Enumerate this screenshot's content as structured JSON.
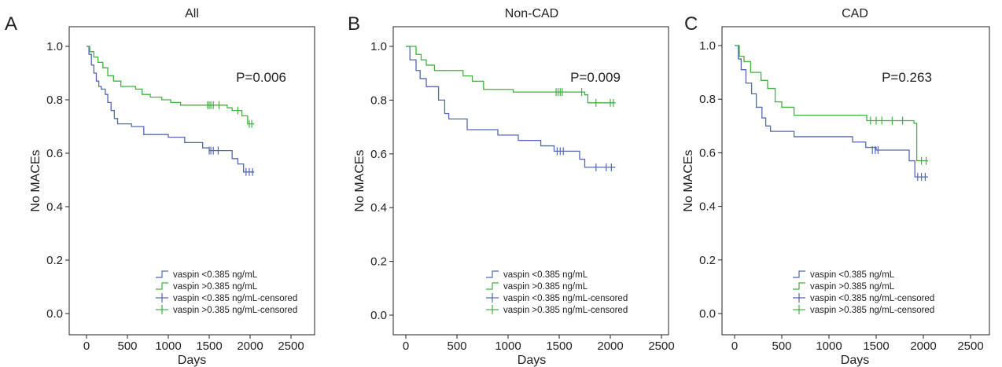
{
  "colors": {
    "low": "#5468b4",
    "high": "#3fb23f",
    "axis": "#222222"
  },
  "legend": [
    "vaspin <0.385 ng/mL",
    "vaspin >0.385 ng/mL",
    "vaspin <0.385 ng/mL-censored",
    "vaspin >0.385 ng/mL-censored"
  ],
  "chart_data": [
    {
      "type": "line",
      "panel": "A",
      "title": "All",
      "xlabel": "Days",
      "ylabel": "No MACEs",
      "xlim": [
        0,
        2500
      ],
      "ylim": [
        0,
        1
      ],
      "xticks": [
        0,
        500,
        1000,
        1500,
        2000,
        2500
      ],
      "yticks": [
        "0.0",
        "0.2",
        "0.4",
        "0.6",
        "0.8",
        "1.0"
      ],
      "annotation": "P=0.006",
      "series": [
        {
          "name": "vaspin <0.385 ng/mL",
          "steps": [
            [
              0,
              1.0
            ],
            [
              30,
              0.97
            ],
            [
              60,
              0.93
            ],
            [
              90,
              0.9
            ],
            [
              120,
              0.87
            ],
            [
              150,
              0.85
            ],
            [
              180,
              0.84
            ],
            [
              230,
              0.82
            ],
            [
              260,
              0.79
            ],
            [
              300,
              0.76
            ],
            [
              340,
              0.73
            ],
            [
              380,
              0.71
            ],
            [
              550,
              0.7
            ],
            [
              700,
              0.67
            ],
            [
              1000,
              0.66
            ],
            [
              1200,
              0.64
            ],
            [
              1420,
              0.62
            ],
            [
              1500,
              0.61
            ],
            [
              1780,
              0.58
            ],
            [
              1850,
              0.56
            ],
            [
              1920,
              0.53
            ],
            [
              2050,
              0.53
            ]
          ],
          "censored": [
            [
              1500,
              0.61
            ],
            [
              1520,
              0.61
            ],
            [
              1550,
              0.61
            ],
            [
              1610,
              0.61
            ],
            [
              1950,
              0.53
            ],
            [
              1990,
              0.53
            ],
            [
              2030,
              0.53
            ]
          ]
        },
        {
          "name": "vaspin >0.385 ng/mL",
          "steps": [
            [
              0,
              1.0
            ],
            [
              40,
              0.98
            ],
            [
              90,
              0.96
            ],
            [
              140,
              0.94
            ],
            [
              200,
              0.92
            ],
            [
              260,
              0.89
            ],
            [
              330,
              0.87
            ],
            [
              420,
              0.85
            ],
            [
              600,
              0.84
            ],
            [
              680,
              0.82
            ],
            [
              780,
              0.81
            ],
            [
              920,
              0.8
            ],
            [
              1030,
              0.79
            ],
            [
              1150,
              0.78
            ],
            [
              1720,
              0.77
            ],
            [
              1780,
              0.76
            ],
            [
              1900,
              0.74
            ],
            [
              1970,
              0.71
            ],
            [
              2050,
              0.71
            ]
          ],
          "censored": [
            [
              1480,
              0.78
            ],
            [
              1500,
              0.78
            ],
            [
              1520,
              0.78
            ],
            [
              1550,
              0.78
            ],
            [
              1620,
              0.78
            ],
            [
              1850,
              0.76
            ],
            [
              1990,
              0.71
            ],
            [
              2020,
              0.71
            ]
          ]
        }
      ]
    },
    {
      "type": "line",
      "panel": "B",
      "title": "Non-CAD",
      "xlabel": "Days",
      "ylabel": "No MACEs",
      "xlim": [
        0,
        2500
      ],
      "ylim": [
        0,
        1
      ],
      "xticks": [
        0,
        500,
        1000,
        1500,
        2000,
        2500
      ],
      "yticks": [
        "0.0",
        "0.2",
        "0.4",
        "0.6",
        "0.8",
        "1.0"
      ],
      "annotation": "P=0.009",
      "series": [
        {
          "name": "vaspin <0.385 ng/mL",
          "steps": [
            [
              0,
              1.0
            ],
            [
              40,
              0.95
            ],
            [
              100,
              0.91
            ],
            [
              140,
              0.88
            ],
            [
              200,
              0.85
            ],
            [
              320,
              0.8
            ],
            [
              380,
              0.75
            ],
            [
              420,
              0.73
            ],
            [
              600,
              0.69
            ],
            [
              900,
              0.67
            ],
            [
              1100,
              0.65
            ],
            [
              1320,
              0.63
            ],
            [
              1450,
              0.61
            ],
            [
              1700,
              0.58
            ],
            [
              1750,
              0.55
            ],
            [
              2050,
              0.55
            ]
          ],
          "censored": [
            [
              1480,
              0.61
            ],
            [
              1510,
              0.61
            ],
            [
              1540,
              0.61
            ],
            [
              1860,
              0.55
            ],
            [
              1960,
              0.55
            ],
            [
              2010,
              0.55
            ]
          ]
        },
        {
          "name": "vaspin >0.385 ng/mL",
          "steps": [
            [
              0,
              1.0
            ],
            [
              100,
              0.97
            ],
            [
              150,
              0.95
            ],
            [
              200,
              0.93
            ],
            [
              280,
              0.91
            ],
            [
              560,
              0.89
            ],
            [
              650,
              0.87
            ],
            [
              760,
              0.84
            ],
            [
              1050,
              0.83
            ],
            [
              1750,
              0.82
            ],
            [
              1780,
              0.79
            ],
            [
              2050,
              0.79
            ]
          ],
          "censored": [
            [
              1470,
              0.83
            ],
            [
              1490,
              0.83
            ],
            [
              1510,
              0.83
            ],
            [
              1530,
              0.83
            ],
            [
              1720,
              0.83
            ],
            [
              1860,
              0.79
            ],
            [
              2000,
              0.79
            ],
            [
              2030,
              0.79
            ]
          ]
        }
      ]
    },
    {
      "type": "line",
      "panel": "C",
      "title": "CAD",
      "xlabel": "Days",
      "ylabel": "No MACEs",
      "xlim": [
        0,
        2500
      ],
      "ylim": [
        0,
        1
      ],
      "xticks": [
        0,
        500,
        1000,
        1500,
        2000,
        2500
      ],
      "yticks": [
        "0.0",
        "0.2",
        "0.4",
        "0.6",
        "0.8",
        "1.0"
      ],
      "annotation": "P=0.263",
      "series": [
        {
          "name": "vaspin <0.385 ng/mL",
          "steps": [
            [
              0,
              1.0
            ],
            [
              40,
              0.95
            ],
            [
              70,
              0.91
            ],
            [
              120,
              0.86
            ],
            [
              180,
              0.82
            ],
            [
              230,
              0.77
            ],
            [
              290,
              0.73
            ],
            [
              330,
              0.7
            ],
            [
              380,
              0.68
            ],
            [
              630,
              0.66
            ],
            [
              1250,
              0.64
            ],
            [
              1390,
              0.62
            ],
            [
              1500,
              0.61
            ],
            [
              1850,
              0.57
            ],
            [
              1910,
              0.51
            ],
            [
              2050,
              0.51
            ]
          ],
          "censored": [
            [
              1460,
              0.61
            ],
            [
              1490,
              0.61
            ],
            [
              1520,
              0.61
            ],
            [
              1940,
              0.51
            ],
            [
              1980,
              0.51
            ],
            [
              2020,
              0.51
            ]
          ]
        },
        {
          "name": "vaspin >0.385 ng/mL",
          "steps": [
            [
              0,
              1.0
            ],
            [
              50,
              0.96
            ],
            [
              100,
              0.94
            ],
            [
              170,
              0.9
            ],
            [
              280,
              0.87
            ],
            [
              350,
              0.84
            ],
            [
              430,
              0.79
            ],
            [
              500,
              0.77
            ],
            [
              630,
              0.74
            ],
            [
              1400,
              0.72
            ],
            [
              1900,
              0.71
            ],
            [
              1930,
              0.57
            ],
            [
              2050,
              0.57
            ]
          ],
          "censored": [
            [
              1440,
              0.72
            ],
            [
              1500,
              0.72
            ],
            [
              1560,
              0.72
            ],
            [
              1670,
              0.72
            ],
            [
              1780,
              0.72
            ],
            [
              1980,
              0.57
            ],
            [
              2030,
              0.57
            ]
          ]
        }
      ]
    }
  ]
}
